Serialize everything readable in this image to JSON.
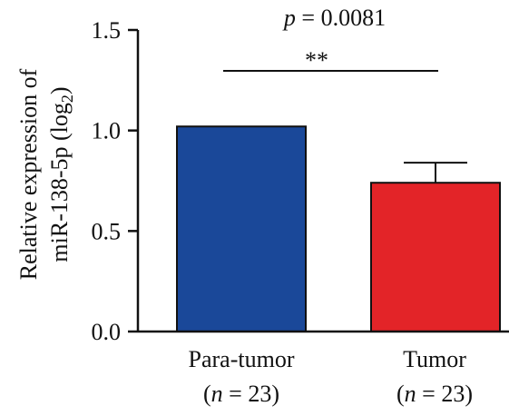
{
  "chart_data": {
    "type": "bar",
    "categories": [
      "Para-tumor",
      "Tumor"
    ],
    "category_sublabels": [
      {
        "open": "(",
        "italic": "n",
        "rest": " = 23)"
      },
      {
        "open": "(",
        "italic": "n",
        "rest": " = 23)"
      }
    ],
    "values": [
      1.02,
      0.74
    ],
    "error_upper": [
      null,
      0.84
    ],
    "bar_colors": [
      "#1a4899",
      "#e32428"
    ],
    "ylabel": {
      "line1": "Relative expression of",
      "line2_main": "miR-138-5p (log",
      "line2_sub": "2",
      "line2_close": ")"
    },
    "ylim": [
      0,
      1.5
    ],
    "yticks": [
      0.0,
      0.5,
      1.0,
      1.5
    ],
    "ytick_labels": [
      "0.0",
      "0.5",
      "1.0",
      "1.5"
    ],
    "annotation": {
      "p_symbol": "p",
      "p_rest": " = 0.0081",
      "significance": "**"
    },
    "grid": false,
    "legend": "none"
  }
}
